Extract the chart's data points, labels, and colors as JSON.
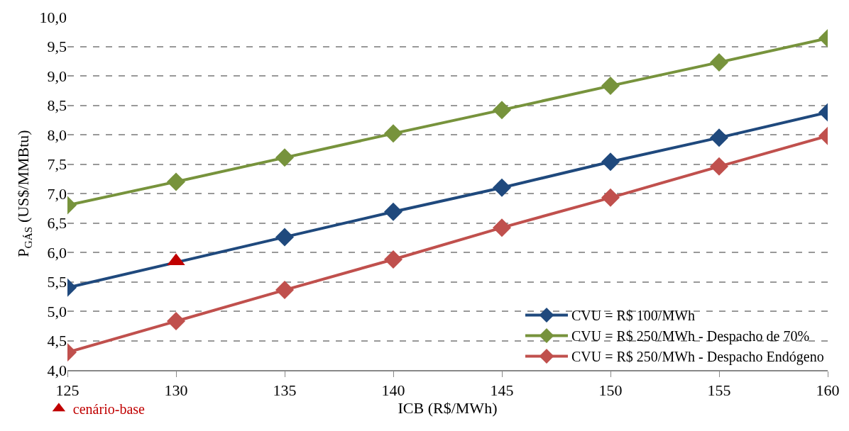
{
  "chart_data": {
    "type": "line",
    "xlabel": "ICB (R$/MWh)",
    "ylabel": "P$_{GÁS}$ (US$/MMBtu)",
    "x": [
      125,
      130,
      135,
      140,
      145,
      150,
      155,
      160
    ],
    "xlim": [
      125,
      160
    ],
    "xticks": [
      125,
      130,
      135,
      140,
      145,
      150,
      155,
      160
    ],
    "ylim": [
      4.0,
      10.0
    ],
    "yticks": [
      {
        "value": 4.0,
        "label": "4,0"
      },
      {
        "value": 4.5,
        "label": "4,5"
      },
      {
        "value": 5.0,
        "label": "5,0"
      },
      {
        "value": 5.5,
        "label": "5,5"
      },
      {
        "value": 6.0,
        "label": "6,0"
      },
      {
        "value": 6.5,
        "label": "6,5"
      },
      {
        "value": 7.0,
        "label": "7,0"
      },
      {
        "value": 7.5,
        "label": "7,5"
      },
      {
        "value": 8.0,
        "label": "8,0"
      },
      {
        "value": 8.5,
        "label": "8,5"
      },
      {
        "value": 9.0,
        "label": "9,0"
      },
      {
        "value": 9.5,
        "label": "9,5"
      },
      {
        "value": 10.0,
        "label": "10,0"
      }
    ],
    "grid": "y",
    "legend": "bottom right",
    "marker": "diamond",
    "line_style": "solid",
    "series": [
      {
        "name": "CVU = R$ 100/MWh",
        "color": "#1f497d",
        "values": [
          5.4,
          null,
          6.26,
          6.69,
          7.1,
          7.54,
          7.95,
          8.38
        ]
      },
      {
        "name": "CVU = R$ 250/MWh - Despacho de 70%",
        "color": "#77933c",
        "values": [
          6.8,
          7.2,
          7.61,
          8.02,
          8.42,
          8.83,
          9.23,
          9.64
        ]
      },
      {
        "name": "CVU = R$ 250/MWh - Despacho Endógeno",
        "color": "#c0504d",
        "values": [
          4.3,
          4.83,
          5.36,
          5.88,
          6.42,
          6.93,
          7.46,
          7.98
        ]
      },
      {
        "name": "cenário-base",
        "type": "scatter",
        "marker": "triangle",
        "color": "#c00000",
        "values": [
          null,
          5.85,
          null,
          null,
          null,
          null,
          null,
          null
        ]
      }
    ]
  }
}
